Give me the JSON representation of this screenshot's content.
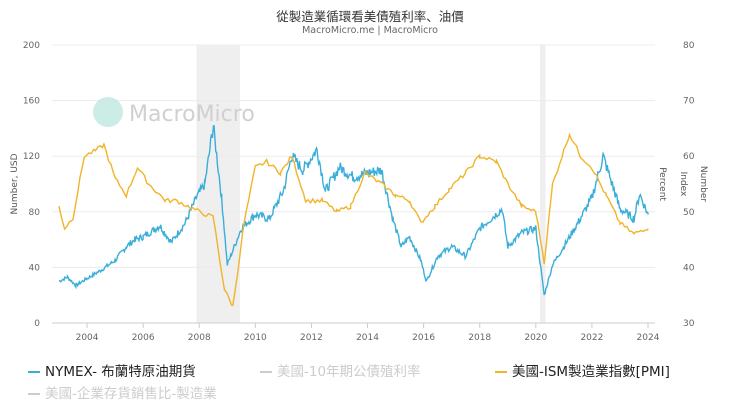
{
  "title": "從製造業循環看美債殖利率、油價",
  "subtitle": "MacroMicro.me | MacroMicro",
  "watermark": "MacroMicro",
  "chart_data": {
    "type": "line",
    "title": "從製造業循環看美債殖利率、油價",
    "left_axis": {
      "label": "Number, USD",
      "range": [
        0,
        200
      ],
      "ticks": [
        "0",
        "40",
        "80",
        "120",
        "160",
        "200"
      ]
    },
    "right_axis": {
      "labels": [
        "Percent",
        "Index",
        "Number"
      ],
      "range": [
        30,
        80
      ],
      "ticks": [
        "30",
        "40",
        "50",
        "60",
        "70",
        "80"
      ]
    },
    "x_axis": {
      "range": [
        2003,
        2024
      ],
      "ticks": [
        "2004",
        "2006",
        "2008",
        "2010",
        "2012",
        "2014",
        "2016",
        "2018",
        "2020",
        "2022",
        "2024"
      ]
    },
    "grid": true,
    "legend_placement": "bottom",
    "recession_bands": [
      [
        2007.9,
        2009.45
      ],
      [
        2020.15,
        2020.35
      ]
    ],
    "series": [
      {
        "name": "NYMEX- 布蘭特原油期貨",
        "axis": "left",
        "color": "#3aaed8",
        "visible": true,
        "x": [
          2003.0,
          2003.3,
          2003.6,
          2004.0,
          2004.5,
          2005.0,
          2005.4,
          2005.7,
          2006.0,
          2006.6,
          2007.0,
          2007.5,
          2007.9,
          2008.2,
          2008.5,
          2008.8,
          2009.0,
          2009.5,
          2010.0,
          2010.5,
          2011.0,
          2011.3,
          2011.7,
          2012.2,
          2012.5,
          2013.0,
          2013.5,
          2014.0,
          2014.5,
          2014.9,
          2015.2,
          2015.5,
          2015.9,
          2016.1,
          2016.5,
          2017.0,
          2017.5,
          2018.0,
          2018.8,
          2019.0,
          2019.5,
          2020.0,
          2020.3,
          2020.6,
          2021.0,
          2021.5,
          2022.0,
          2022.4,
          2022.8,
          2023.0,
          2023.5,
          2023.7,
          2024.0
        ],
        "values": [
          30,
          33,
          27,
          32,
          38,
          45,
          55,
          60,
          62,
          70,
          58,
          72,
          90,
          100,
          142,
          90,
          42,
          68,
          78,
          75,
          95,
          120,
          110,
          125,
          95,
          112,
          105,
          108,
          110,
          75,
          55,
          62,
          45,
          30,
          48,
          55,
          48,
          68,
          82,
          55,
          65,
          68,
          20,
          42,
          55,
          72,
          90,
          120,
          95,
          82,
          75,
          93,
          78
        ]
      },
      {
        "name": "美國-10年期公債殖利率",
        "axis": "right",
        "color": "#cccccc",
        "visible": false
      },
      {
        "name": "美國-ISM製造業指數[PMI]",
        "axis": "right",
        "color": "#f0b429",
        "visible": true,
        "x": [
          2003.0,
          2003.2,
          2003.5,
          2003.9,
          2004.3,
          2004.6,
          2005.0,
          2005.4,
          2005.8,
          2006.2,
          2006.8,
          2007.2,
          2007.6,
          2008.0,
          2008.5,
          2008.9,
          2009.2,
          2009.6,
          2010.0,
          2010.4,
          2010.9,
          2011.3,
          2011.8,
          2012.4,
          2012.9,
          2013.4,
          2013.9,
          2014.5,
          2015.0,
          2015.5,
          2015.9,
          2016.4,
          2016.9,
          2017.5,
          2018.0,
          2018.6,
          2019.0,
          2019.5,
          2020.0,
          2020.3,
          2020.6,
          2021.0,
          2021.2,
          2021.6,
          2022.0,
          2022.5,
          2023.0,
          2023.5,
          2023.9,
          2024.0
        ],
        "values": [
          51,
          47,
          49,
          60,
          61,
          62,
          56,
          53,
          58,
          55,
          52,
          52,
          51,
          50,
          49,
          36,
          33,
          48,
          58,
          59,
          57,
          60,
          52,
          52,
          50,
          51,
          57,
          55,
          53,
          52,
          48,
          51,
          54,
          57,
          60,
          59,
          55,
          51,
          50,
          41,
          55,
          61,
          64,
          60,
          58,
          53,
          48,
          46,
          47,
          47
        ]
      },
      {
        "name": "美國-企業存貨銷售比-製造業",
        "axis": "right",
        "color": "#cccccc",
        "visible": false
      }
    ]
  }
}
